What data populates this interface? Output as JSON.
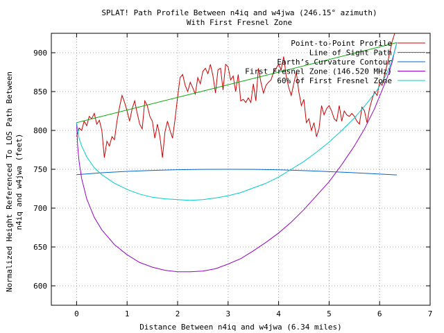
{
  "chart_data": {
    "type": "line",
    "title": "SPLAT! Path Profile Between n4iq and w4jwa (246.15° azimuth)",
    "subtitle": "With First Fresnel Zone",
    "xlabel": "Distance Between n4iq and w4jwa (6.34 miles)",
    "ylabel_line1": "Normalized Height Referenced To LOS Path Between",
    "ylabel_line2": "n4iq and w4jwa (feet)",
    "xlim": [
      -0.5,
      7
    ],
    "ylim": [
      575,
      925
    ],
    "xticks": [
      0,
      1,
      2,
      3,
      4,
      5,
      6,
      7
    ],
    "yticks": [
      600,
      650,
      700,
      750,
      800,
      850,
      900
    ],
    "grid": true,
    "legend_position": "top-right",
    "series": [
      {
        "name": "Point-to-Point Profile",
        "color": "#cc0000",
        "x": [
          0,
          0.05,
          0.1,
          0.15,
          0.2,
          0.25,
          0.3,
          0.35,
          0.4,
          0.45,
          0.5,
          0.55,
          0.6,
          0.65,
          0.7,
          0.75,
          0.8,
          0.85,
          0.9,
          0.95,
          1.0,
          1.05,
          1.1,
          1.15,
          1.2,
          1.25,
          1.3,
          1.35,
          1.4,
          1.45,
          1.5,
          1.55,
          1.6,
          1.65,
          1.7,
          1.75,
          1.8,
          1.85,
          1.9,
          1.95,
          2.0,
          2.05,
          2.1,
          2.15,
          2.2,
          2.25,
          2.3,
          2.35,
          2.4,
          2.45,
          2.5,
          2.55,
          2.6,
          2.65,
          2.7,
          2.75,
          2.8,
          2.85,
          2.9,
          2.95,
          3.0,
          3.05,
          3.1,
          3.15,
          3.2,
          3.25,
          3.3,
          3.35,
          3.4,
          3.45,
          3.5,
          3.55,
          3.6,
          3.65,
          3.7,
          3.75,
          3.8,
          3.85,
          3.9,
          3.95,
          4.0,
          4.05,
          4.1,
          4.15,
          4.2,
          4.25,
          4.3,
          4.35,
          4.4,
          4.45,
          4.5,
          4.55,
          4.6,
          4.65,
          4.7,
          4.75,
          4.8,
          4.85,
          4.9,
          4.95,
          5.0,
          5.05,
          5.1,
          5.15,
          5.2,
          5.25,
          5.3,
          5.35,
          5.4,
          5.45,
          5.5,
          5.55,
          5.6,
          5.65,
          5.7,
          5.75,
          5.8,
          5.85,
          5.9,
          5.95,
          6.0,
          6.05,
          6.1,
          6.15,
          6.2,
          6.25,
          6.3
        ],
        "y": [
          792,
          803,
          800,
          812,
          806,
          818,
          815,
          822,
          808,
          813,
          800,
          765,
          786,
          780,
          792,
          788,
          812,
          830,
          845,
          836,
          825,
          812,
          828,
          838,
          822,
          808,
          802,
          838,
          832,
          818,
          812,
          790,
          808,
          792,
          765,
          798,
          812,
          800,
          790,
          815,
          843,
          868,
          872,
          858,
          850,
          862,
          855,
          847,
          868,
          860,
          876,
          880,
          873,
          885,
          870,
          848,
          878,
          880,
          852,
          885,
          882,
          865,
          870,
          850,
          872,
          838,
          840,
          836,
          842,
          836,
          860,
          838,
          880,
          862,
          848,
          858,
          862,
          865,
          875,
          880,
          885,
          878,
          895,
          870,
          855,
          845,
          860,
          875,
          850,
          832,
          840,
          810,
          815,
          800,
          810,
          792,
          802,
          832,
          820,
          828,
          832,
          825,
          815,
          812,
          832,
          812,
          825,
          820,
          818,
          822,
          818,
          812,
          808,
          830,
          825,
          810,
          828,
          840,
          850,
          845,
          862,
          858,
          872,
          885,
          900,
          915,
          925
        ]
      },
      {
        "name": "Line of Sight Path",
        "color": "#00aa00",
        "x": [
          0,
          6.34
        ],
        "y": [
          810,
          913
        ]
      },
      {
        "name": "Earth’s Curvature Contour",
        "color": "#0066cc",
        "x": [
          0,
          0.5,
          1,
          1.5,
          2,
          2.5,
          3,
          3.5,
          4,
          4.5,
          5,
          5.5,
          6,
          6.34
        ],
        "y": [
          743,
          745.5,
          747.3,
          748.6,
          749.5,
          749.9,
          750,
          749.9,
          749.3,
          748.3,
          747,
          745.5,
          743.8,
          742.8
        ]
      },
      {
        "name": "First Fresnel Zone (146.520 MHz)",
        "color": "#9900cc",
        "x": [
          0,
          0.02,
          0.05,
          0.1,
          0.2,
          0.35,
          0.5,
          0.75,
          1,
          1.25,
          1.5,
          1.75,
          2,
          2.25,
          2.5,
          2.75,
          3,
          3.25,
          3.5,
          3.75,
          4,
          4.25,
          4.5,
          4.75,
          5,
          5.25,
          5.5,
          5.7,
          5.9,
          6.05,
          6.15,
          6.25,
          6.3,
          6.34
        ],
        "y": [
          810,
          780,
          760,
          738,
          712,
          688,
          672,
          653,
          640,
          630,
          624,
          620,
          618,
          618,
          619,
          622,
          628,
          635,
          645,
          656,
          668,
          682,
          698,
          716,
          734,
          756,
          780,
          802,
          828,
          852,
          868,
          888,
          903,
          913
        ]
      },
      {
        "name": "60% of First Fresnel Zone",
        "color": "#00cccc",
        "x": [
          0,
          0.05,
          0.1,
          0.2,
          0.35,
          0.5,
          0.75,
          1,
          1.25,
          1.5,
          1.75,
          2,
          2.25,
          2.5,
          2.75,
          3,
          3.25,
          3.5,
          3.75,
          4,
          4.25,
          4.5,
          4.75,
          5,
          5.25,
          5.5,
          5.75,
          5.95,
          6.1,
          6.2,
          6.3,
          6.34
        ],
        "y": [
          810,
          790,
          780,
          766,
          752,
          743,
          732,
          724,
          718,
          714,
          712,
          711,
          710,
          711,
          713,
          716,
          720,
          726,
          732,
          740,
          750,
          760,
          772,
          785,
          800,
          816,
          835,
          852,
          868,
          882,
          902,
          913
        ]
      }
    ]
  }
}
